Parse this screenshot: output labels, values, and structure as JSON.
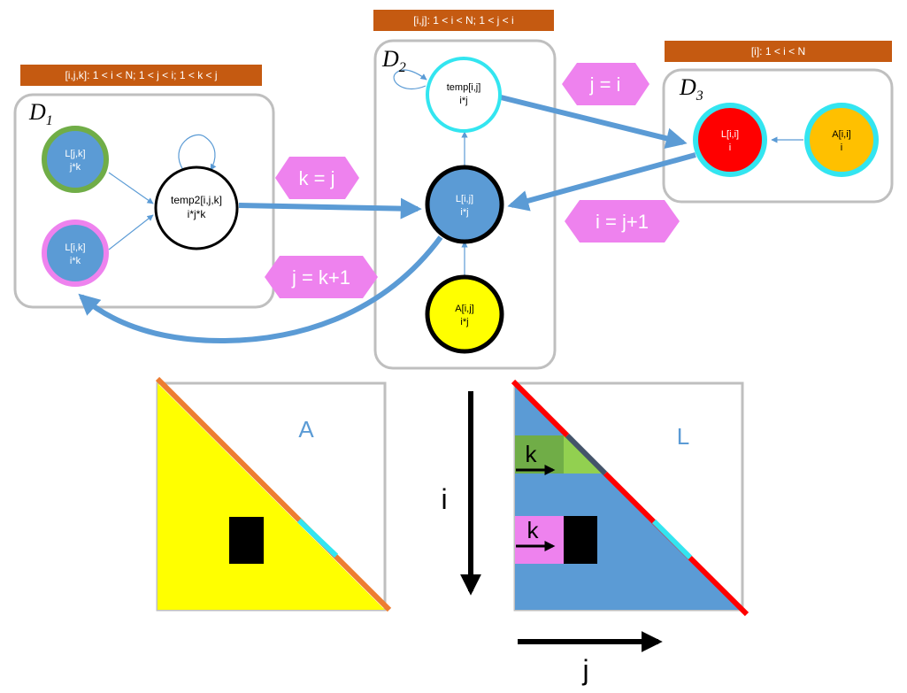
{
  "domains": [
    {
      "id": "D1",
      "letter": "D",
      "sub": "1",
      "banner": "[i,j,k]: 1 < i < N; 1 < j < i; 1 < k < j"
    },
    {
      "id": "D2",
      "letter": "D",
      "sub": "2",
      "banner": "[i,j]: 1 < i < N; 1 < j < i"
    },
    {
      "id": "D3",
      "letter": "D",
      "sub": "3",
      "banner": "[i]: 1 < i < N"
    }
  ],
  "nodes": {
    "ljk": {
      "l1": "L[j,k]",
      "l2": "j*k"
    },
    "lik": {
      "l1": "L[i,k]",
      "l2": "i*k"
    },
    "temp2": {
      "l1": "temp2[i,j,k]",
      "l2": "i*j*k"
    },
    "temp": {
      "l1": "temp[i,j]",
      "l2": "i*j"
    },
    "lij": {
      "l1": "L[i,j]",
      "l2": "i*j"
    },
    "aij": {
      "l1": "A[i,j]",
      "l2": "i*j"
    },
    "lii": {
      "l1": "L[i,i]",
      "l2": "i"
    },
    "aii": {
      "l1": "A[i,i]",
      "l2": "i"
    }
  },
  "edge_labels": {
    "k_eq_j": "k = j",
    "j_eq_k1": "j = k+1",
    "j_eq_i": "j = i",
    "i_eq_j1": "i = j+1"
  },
  "matrices": {
    "A": {
      "label": "A"
    },
    "L": {
      "label": "L",
      "k_label": "k"
    }
  },
  "axes": {
    "i": "i",
    "j": "j"
  },
  "colors": {
    "node_blue": "#5b9bd5",
    "green_ring": "#70ad47",
    "magenta": "#ee82ee",
    "cyan": "#33e5f0",
    "red": "#ff0000",
    "orange": "#ffc000",
    "yellow": "#ffff00",
    "banner": "#c55a11",
    "arrow_blue": "#5b9bd5"
  }
}
